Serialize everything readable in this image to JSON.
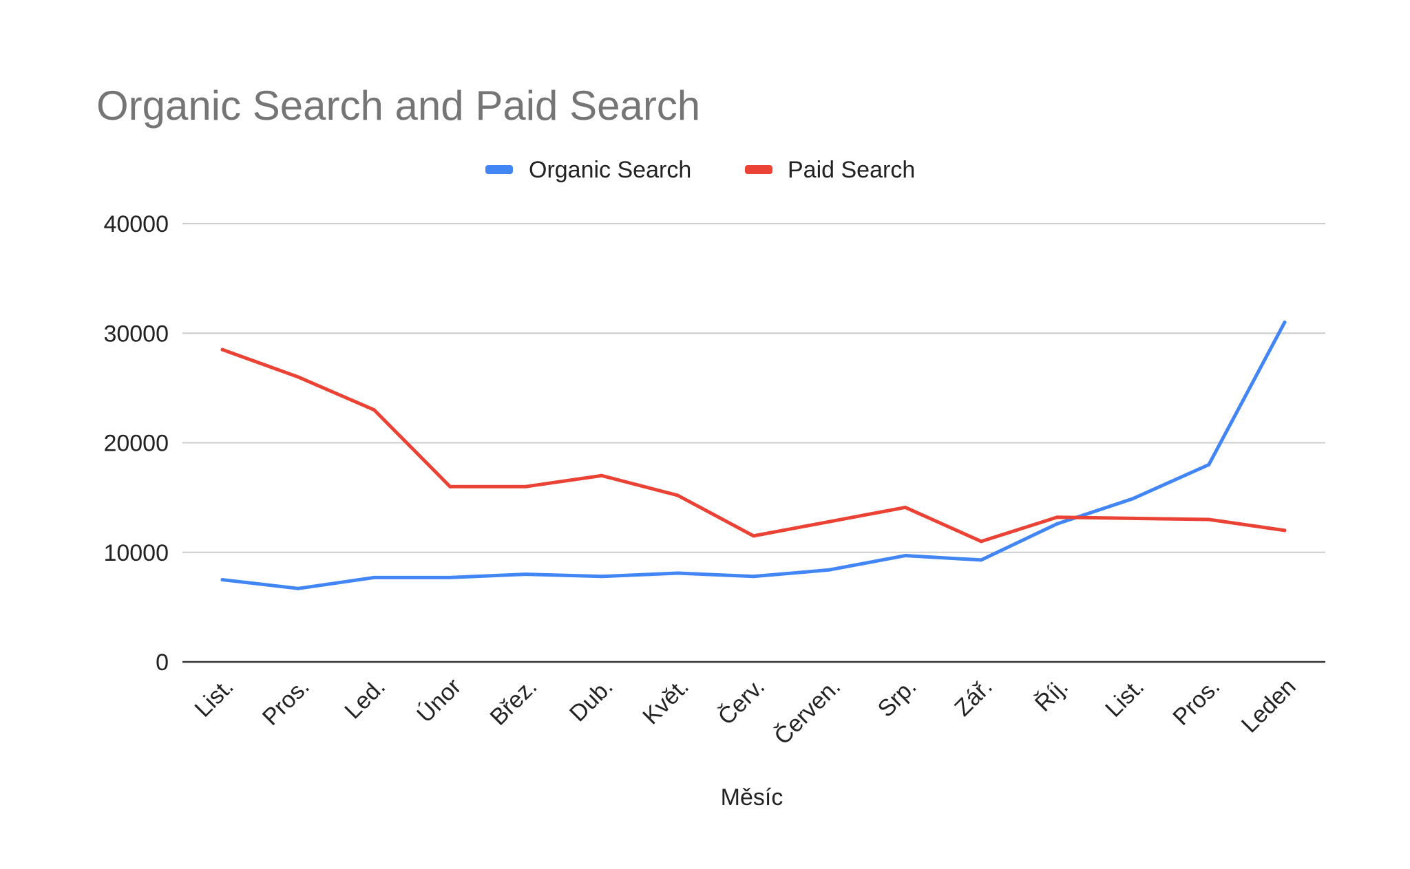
{
  "chart_data": {
    "type": "line",
    "title": "Organic Search and Paid Search",
    "xlabel": "Měsíc",
    "ylabel": "",
    "categories": [
      "List.",
      "Pros.",
      "Led.",
      "Únor",
      "Břez.",
      "Dub.",
      "Květ.",
      "Červ.",
      "Červen.",
      "Srp.",
      "Zář.",
      "Říj.",
      "List.",
      "Pros.",
      "Leden"
    ],
    "ylim": [
      0,
      40000
    ],
    "yticks": [
      "0",
      "10000",
      "20000",
      "30000",
      "40000"
    ],
    "grid": true,
    "legend_position": "top",
    "series": [
      {
        "name": "Organic Search",
        "color": "#4285f4",
        "values": [
          7500,
          6700,
          7700,
          7700,
          8000,
          7800,
          8100,
          7800,
          8400,
          9700,
          9300,
          12600,
          14900,
          18000,
          31000
        ]
      },
      {
        "name": "Paid Search",
        "color": "#ea4335",
        "values": [
          28500,
          26000,
          23000,
          16000,
          16000,
          17000,
          15200,
          11500,
          12800,
          14100,
          11000,
          13200,
          13100,
          13000,
          12000
        ]
      }
    ]
  }
}
